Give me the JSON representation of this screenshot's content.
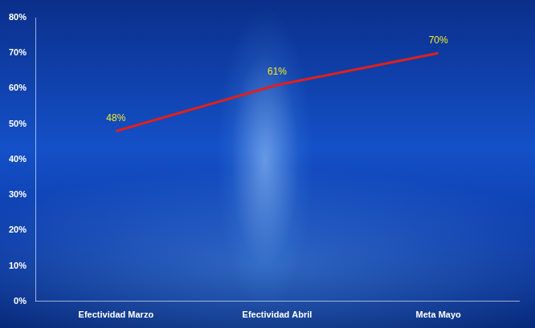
{
  "chart_data": {
    "type": "line",
    "categories": [
      "Efectividad Marzo",
      "Efectividad Abril",
      "Meta Mayo"
    ],
    "values": [
      48,
      61,
      70
    ],
    "value_labels": [
      "48%",
      "61%",
      "70%"
    ],
    "data_labels": true,
    "color": "#e0201c",
    "ylim": [
      0,
      80
    ],
    "yticks": [
      {
        "value": 0,
        "label": "0%"
      },
      {
        "value": 10,
        "label": "10%"
      },
      {
        "value": 20,
        "label": "20%"
      },
      {
        "value": 30,
        "label": "30%"
      },
      {
        "value": 40,
        "label": "40%"
      },
      {
        "value": 50,
        "label": "50%"
      },
      {
        "value": 60,
        "label": "60%"
      },
      {
        "value": 70,
        "label": "70%"
      },
      {
        "value": 80,
        "label": "80%"
      }
    ],
    "grid": false
  }
}
